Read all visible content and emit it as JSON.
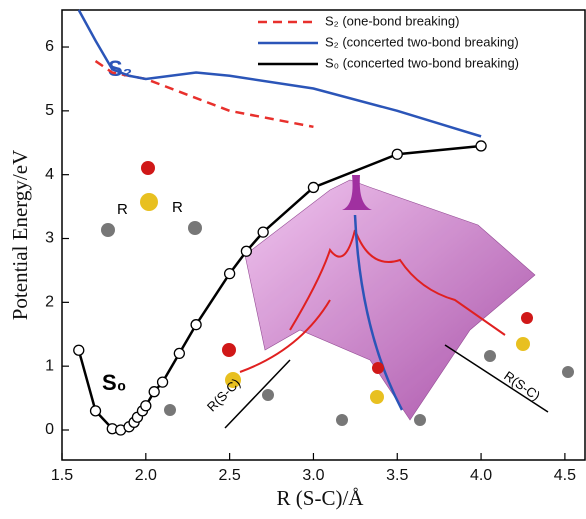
{
  "chart_data": {
    "type": "line",
    "x_label": "R (S-C)/Å",
    "y_label": "Potential Energy/eV",
    "xlim": [
      1.5,
      4.62
    ],
    "ylim": [
      -0.47,
      6.58
    ],
    "xticks": [
      1.5,
      {
        "value": 2,
        "label": "2.0"
      },
      2.5,
      {
        "value": 3,
        "label": "3.0"
      },
      3.5,
      {
        "value": 4,
        "label": "4.0"
      },
      4.5
    ],
    "yticks": [
      0,
      1,
      2,
      3,
      4,
      5,
      6
    ],
    "legend": "upper right",
    "series": [
      {
        "name": "S₂ (one-bond breaking)",
        "color": "#e8302c",
        "dash": true,
        "markers": false,
        "x": [
          1.7,
          1.8,
          1.9,
          2.0,
          2.2,
          2.5,
          2.8,
          3.0
        ],
        "values": [
          5.78,
          5.6,
          5.55,
          5.5,
          5.3,
          5.0,
          4.85,
          4.75
        ]
      },
      {
        "name": "S₂ (concerted two-bond breaking)",
        "color": "#2b55b8",
        "dash": false,
        "markers": false,
        "x": [
          1.6,
          1.7,
          1.8,
          1.9,
          2.0,
          2.3,
          2.5,
          3.0,
          3.5,
          4.0
        ],
        "values": [
          6.58,
          6.1,
          5.65,
          5.55,
          5.5,
          5.6,
          5.55,
          5.35,
          5.0,
          4.6
        ]
      },
      {
        "name": "S₀ (concerted two-bond breaking)",
        "color": "#000000",
        "dash": false,
        "markers": true,
        "x": [
          1.6,
          1.7,
          1.8,
          1.85,
          1.9,
          1.93,
          1.95,
          1.98,
          2.0,
          2.05,
          2.1,
          2.2,
          2.3,
          2.5,
          2.6,
          2.7,
          3.0,
          3.5,
          4.0
        ],
        "values": [
          1.25,
          0.3,
          0.02,
          0.0,
          0.05,
          0.12,
          0.2,
          0.3,
          0.38,
          0.6,
          0.75,
          1.2,
          1.65,
          2.45,
          2.8,
          3.1,
          3.8,
          4.32,
          4.45
        ]
      }
    ],
    "annotations": [
      "S₂",
      "S₀",
      "R",
      "R",
      "R(S-C)",
      "R(S-C)"
    ]
  }
}
